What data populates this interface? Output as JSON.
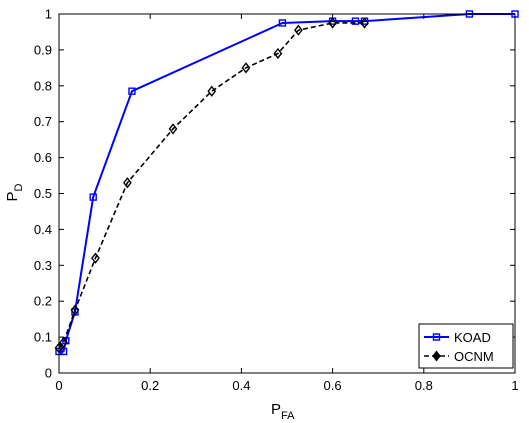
{
  "chart_data": {
    "type": "line",
    "title": "",
    "xlabel": {
      "main": "P",
      "sub": "FA"
    },
    "ylabel": {
      "main": "P",
      "sub": "D"
    },
    "xlim": [
      0,
      1
    ],
    "ylim": [
      0,
      1
    ],
    "xticks": [
      0,
      0.2,
      0.4,
      0.6,
      0.8,
      1
    ],
    "yticks": [
      0,
      0.1,
      0.2,
      0.3,
      0.4,
      0.5,
      0.6,
      0.7,
      0.8,
      0.9,
      1
    ],
    "xtick_labels": [
      "0",
      "0.2",
      "0.4",
      "0.6",
      "0.8",
      "1"
    ],
    "ytick_labels": [
      "0",
      "0.1",
      "0.2",
      "0.3",
      "0.4",
      "0.5",
      "0.6",
      "0.7",
      "0.8",
      "0.9",
      "1"
    ],
    "grid": false,
    "legend_position": "bottom-right",
    "series": [
      {
        "name": "KOAD",
        "color": "#0000ff",
        "line_style": "solid",
        "marker": "square",
        "x": [
          0.0,
          0.01,
          0.015,
          0.035,
          0.075,
          0.16,
          0.49,
          0.6,
          0.65,
          0.67,
          0.9,
          1.0
        ],
        "y": [
          0.06,
          0.06,
          0.09,
          0.17,
          0.49,
          0.785,
          0.975,
          0.98,
          0.98,
          0.98,
          1.0,
          1.0
        ]
      },
      {
        "name": "OCNM",
        "color": "#000000",
        "line_style": "dashed",
        "marker": "diamond",
        "x": [
          0.0,
          0.01,
          0.035,
          0.08,
          0.15,
          0.25,
          0.335,
          0.41,
          0.48,
          0.525,
          0.6,
          0.67
        ],
        "y": [
          0.07,
          0.085,
          0.175,
          0.32,
          0.53,
          0.68,
          0.785,
          0.85,
          0.89,
          0.955,
          0.975,
          0.975
        ]
      }
    ]
  }
}
